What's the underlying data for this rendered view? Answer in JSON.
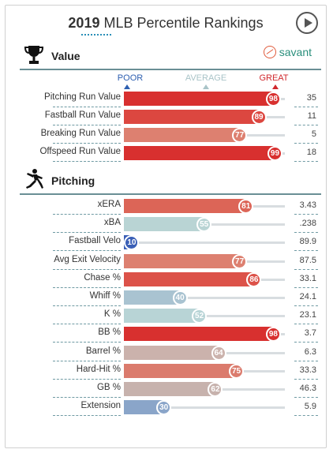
{
  "header": {
    "year": "2019",
    "title_rest": " MLB Percentile Rankings"
  },
  "sections": {
    "value": {
      "label": "Value",
      "brand": "savant"
    },
    "pitching": {
      "label": "Pitching"
    }
  },
  "scale": {
    "poor": "POOR",
    "average": "AVERAGE",
    "great": "GREAT",
    "poor_color": "#2d5fb0",
    "average_color": "#a9c4c8",
    "great_color": "#d0282d"
  },
  "value_rows": [
    {
      "label": "Pitching Run Value",
      "percentile": 98,
      "stat": "35",
      "color": "#d8302f"
    },
    {
      "label": "Fastball Run Value",
      "percentile": 89,
      "stat": "11",
      "color": "#dc4740"
    },
    {
      "label": "Breaking Run Value",
      "percentile": 77,
      "stat": "5",
      "color": "#dd8070"
    },
    {
      "label": "Offspeed Run Value",
      "percentile": 99,
      "stat": "18",
      "color": "#d8302f"
    }
  ],
  "pitching_rows": [
    {
      "label": "xERA",
      "percentile": 81,
      "stat": "3.43",
      "color": "#dc6557"
    },
    {
      "label": "xBA",
      "percentile": 55,
      "stat": ".238",
      "color": "#b9d4d4"
    },
    {
      "label": "Fastball Velo",
      "percentile": 10,
      "stat": "89.9",
      "color": "#3a5fb6"
    },
    {
      "label": "Avg Exit Velocity",
      "percentile": 77,
      "stat": "87.5",
      "color": "#dd8070"
    },
    {
      "label": "Chase %",
      "percentile": 86,
      "stat": "33.1",
      "color": "#dc5249"
    },
    {
      "label": "Whiff %",
      "percentile": 40,
      "stat": "24.1",
      "color": "#a9c3d1"
    },
    {
      "label": "K %",
      "percentile": 52,
      "stat": "23.1",
      "color": "#b8d4d6"
    },
    {
      "label": "BB %",
      "percentile": 98,
      "stat": "3.7",
      "color": "#d8302f"
    },
    {
      "label": "Barrel %",
      "percentile": 64,
      "stat": "6.3",
      "color": "#cbb2ac"
    },
    {
      "label": "Hard-Hit %",
      "percentile": 75,
      "stat": "33.3",
      "color": "#db7b6d"
    },
    {
      "label": "GB %",
      "percentile": 62,
      "stat": "46.3",
      "color": "#c7b2ad"
    },
    {
      "label": "Extension",
      "percentile": 30,
      "stat": "5.9",
      "color": "#8aa5c9"
    }
  ],
  "icons": {
    "trophy": "trophy-icon",
    "pitcher": "pitcher-icon",
    "play": "play-icon",
    "savant_logo": "savant-logo-icon"
  }
}
